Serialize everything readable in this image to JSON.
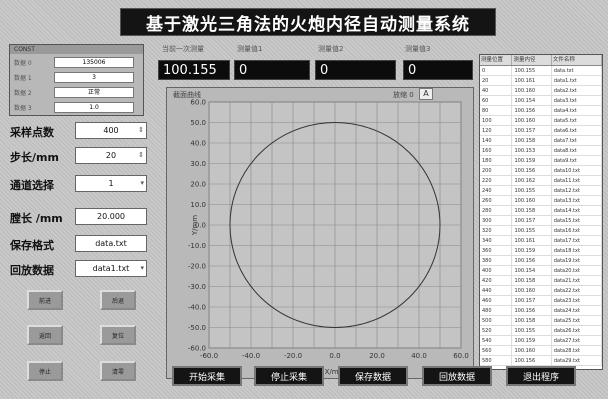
{
  "title": "基于激光三角法的火炮内径自动测量系统",
  "status_box": {
    "header": "CONST",
    "rows": [
      {
        "label": "数据 0",
        "value": "135006"
      },
      {
        "label": "数据 1",
        "value": "3"
      },
      {
        "label": "数据 2",
        "value": "正常"
      },
      {
        "label": "数据 3",
        "value": "1.0"
      }
    ]
  },
  "params": {
    "sample_points_label": "采样点数",
    "sample_points_value": "400",
    "step_label": "步长/mm",
    "step_value": "20",
    "channel_label": "通道选择",
    "channel_value": "1",
    "bore_length_label": "膛长 /mm",
    "bore_length_value": "20.000",
    "save_format_label": "保存格式",
    "save_format_value": "data.txt",
    "playback_label": "回放数据",
    "playback_value": "data1.txt"
  },
  "small_buttons": [
    "前进",
    "后退",
    "返回",
    "复位",
    "停止",
    "清零"
  ],
  "readouts": {
    "labels": [
      "当前一次测量",
      "测量值1",
      "测量值2",
      "测量值3"
    ],
    "values": [
      "100.155",
      "0",
      "0",
      "0"
    ]
  },
  "chart_panel": {
    "title": "截面曲线",
    "zoom_label": "放缩 0",
    "zoom_button": "A"
  },
  "chart_data": {
    "type": "scatter",
    "title": "",
    "xlabel": "X/mm",
    "ylabel": "Y/mm",
    "xlim": [
      -60,
      60
    ],
    "ylim": [
      -60,
      60
    ],
    "x_ticks": [
      "-60.0",
      "-40.0",
      "-20.0",
      "0.0",
      "20.0",
      "40.0",
      "60.0"
    ],
    "y_ticks": [
      "60.0",
      "50.0",
      "40.0",
      "30.0",
      "20.0",
      "10.0",
      "0.0",
      "-10.0",
      "-20.0",
      "-30.0",
      "-40.0",
      "-50.0",
      "-60.0"
    ],
    "series": [
      {
        "shape": "circle",
        "center": [
          0,
          0
        ],
        "radius": 50
      }
    ],
    "grid": true
  },
  "table": {
    "headers": [
      "测量位置",
      "测量内径",
      "文件名称"
    ],
    "rows": [
      [
        "0",
        "100.155",
        "data.txt"
      ],
      [
        "20",
        "100.161",
        "data1.txt"
      ],
      [
        "40",
        "100.160",
        "data2.txt"
      ],
      [
        "60",
        "100.154",
        "data3.txt"
      ],
      [
        "80",
        "100.156",
        "data4.txt"
      ],
      [
        "100",
        "100.160",
        "data5.txt"
      ],
      [
        "120",
        "100.157",
        "data6.txt"
      ],
      [
        "140",
        "100.158",
        "data7.txt"
      ],
      [
        "160",
        "100.153",
        "data8.txt"
      ],
      [
        "180",
        "100.159",
        "data9.txt"
      ],
      [
        "200",
        "100.156",
        "data10.txt"
      ],
      [
        "220",
        "100.162",
        "data11.txt"
      ],
      [
        "240",
        "100.155",
        "data12.txt"
      ],
      [
        "260",
        "100.160",
        "data13.txt"
      ],
      [
        "280",
        "100.158",
        "data14.txt"
      ],
      [
        "300",
        "100.157",
        "data15.txt"
      ],
      [
        "320",
        "100.155",
        "data16.txt"
      ],
      [
        "340",
        "100.161",
        "data17.txt"
      ],
      [
        "360",
        "100.159",
        "data18.txt"
      ],
      [
        "380",
        "100.156",
        "data19.txt"
      ],
      [
        "400",
        "100.154",
        "data20.txt"
      ],
      [
        "420",
        "100.158",
        "data21.txt"
      ],
      [
        "440",
        "100.160",
        "data22.txt"
      ],
      [
        "460",
        "100.157",
        "data23.txt"
      ],
      [
        "480",
        "100.156",
        "data24.txt"
      ],
      [
        "500",
        "100.158",
        "data25.txt"
      ],
      [
        "520",
        "100.155",
        "data26.txt"
      ],
      [
        "540",
        "100.159",
        "data27.txt"
      ],
      [
        "560",
        "100.160",
        "data28.txt"
      ],
      [
        "580",
        "100.156",
        "data29.txt"
      ]
    ]
  },
  "bottom_buttons": [
    "开始采集",
    "停止采集",
    "保存数据",
    "回放数据",
    "退出程序"
  ],
  "colors": {
    "screen_black": "#141414",
    "panel_gray": "#b9b9b9",
    "plot_bg": "#c4c4c4"
  }
}
